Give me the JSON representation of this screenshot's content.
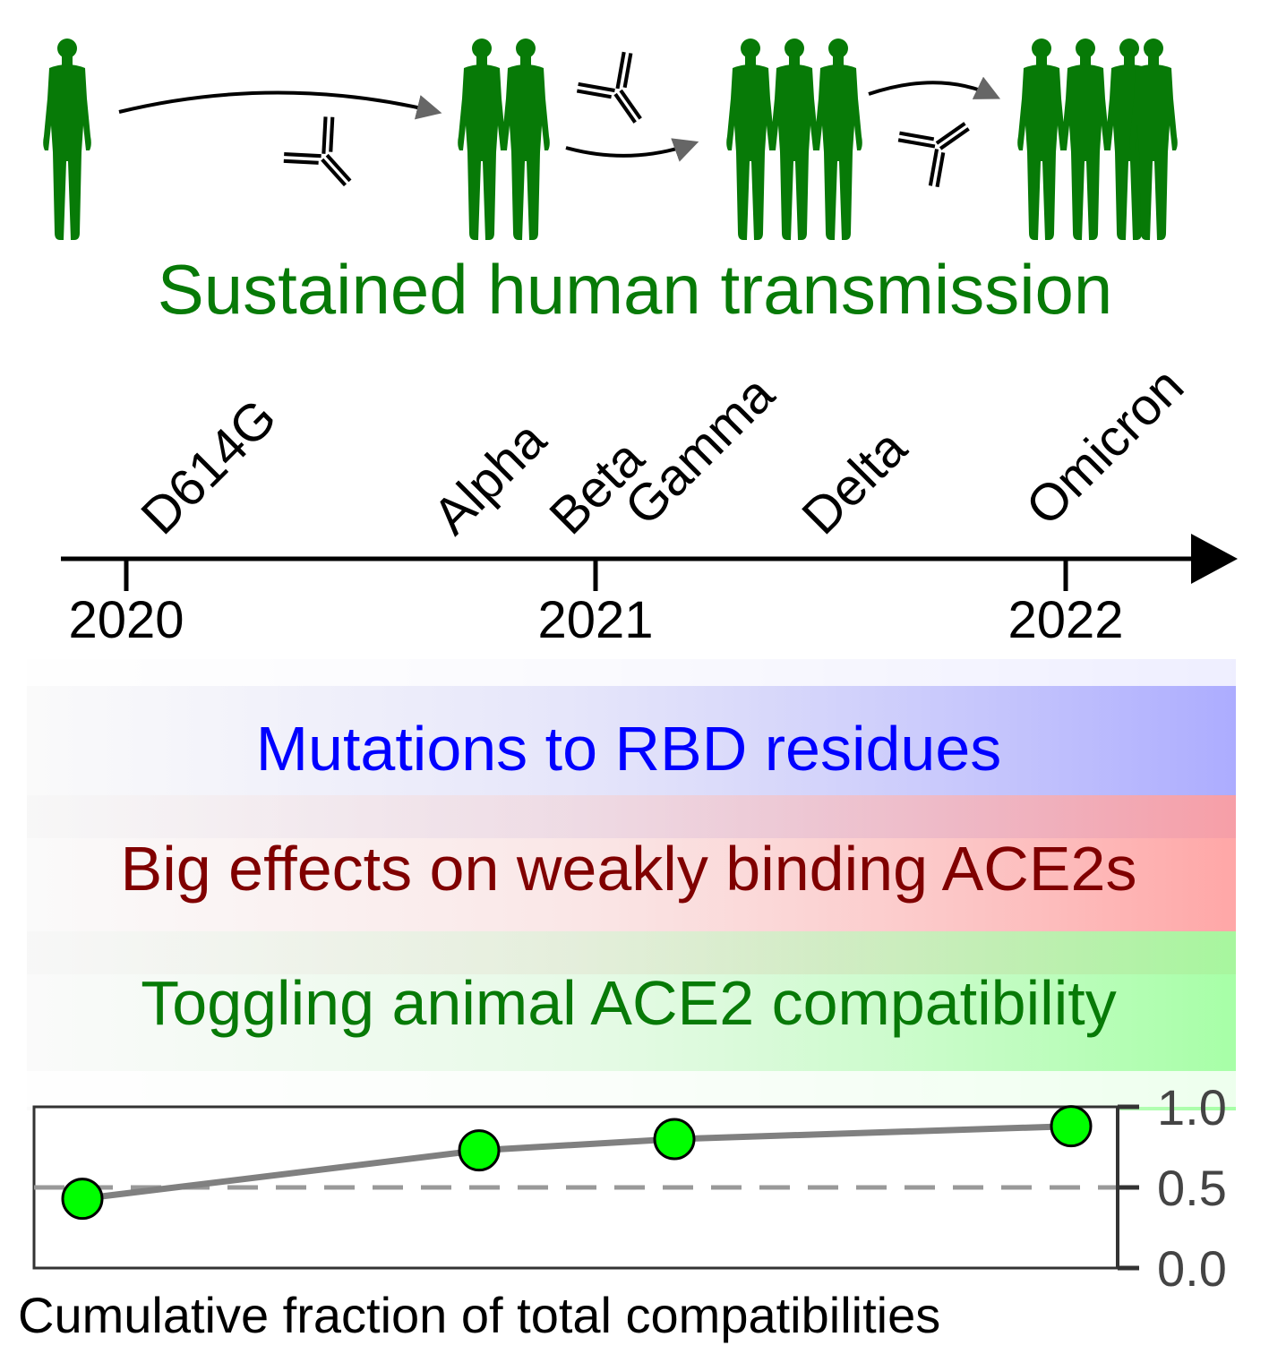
{
  "header": {
    "title": "Sustained human transmission",
    "title_color": "#077a07"
  },
  "people_color": "#077a07",
  "timeline": {
    "variants": [
      "D614G",
      "Alpha",
      "Beta",
      "Gamma",
      "Delta",
      "Omicron"
    ],
    "years": [
      "2020",
      "2021",
      "2022"
    ]
  },
  "bands": [
    {
      "label": "Mutations to RBD residues",
      "text_color": "#0000ff",
      "band_color": "#a3a3ff"
    },
    {
      "label": "Big effects on weakly binding ACE2s",
      "text_color": "#800000",
      "band_color": "#ff9d9d"
    },
    {
      "label": "Toggling animal ACE2 compatibility",
      "text_color": "#077a07",
      "band_color": "#9dff9d"
    }
  ],
  "chart_data": {
    "type": "line",
    "xlabel": "Cumulative fraction of total compatibilities",
    "y_ticks": [
      "0.0",
      "0.5",
      "1.0"
    ],
    "ylim": [
      0,
      1
    ],
    "reference_line": 0.5,
    "points": [
      {
        "x": 2020.1,
        "y": 0.43
      },
      {
        "x": 2020.95,
        "y": 0.73
      },
      {
        "x": 2021.2,
        "y": 0.8
      },
      {
        "x": 2022.0,
        "y": 0.88
      }
    ],
    "marker_color": "#00ff00",
    "line_color": "#808080"
  }
}
